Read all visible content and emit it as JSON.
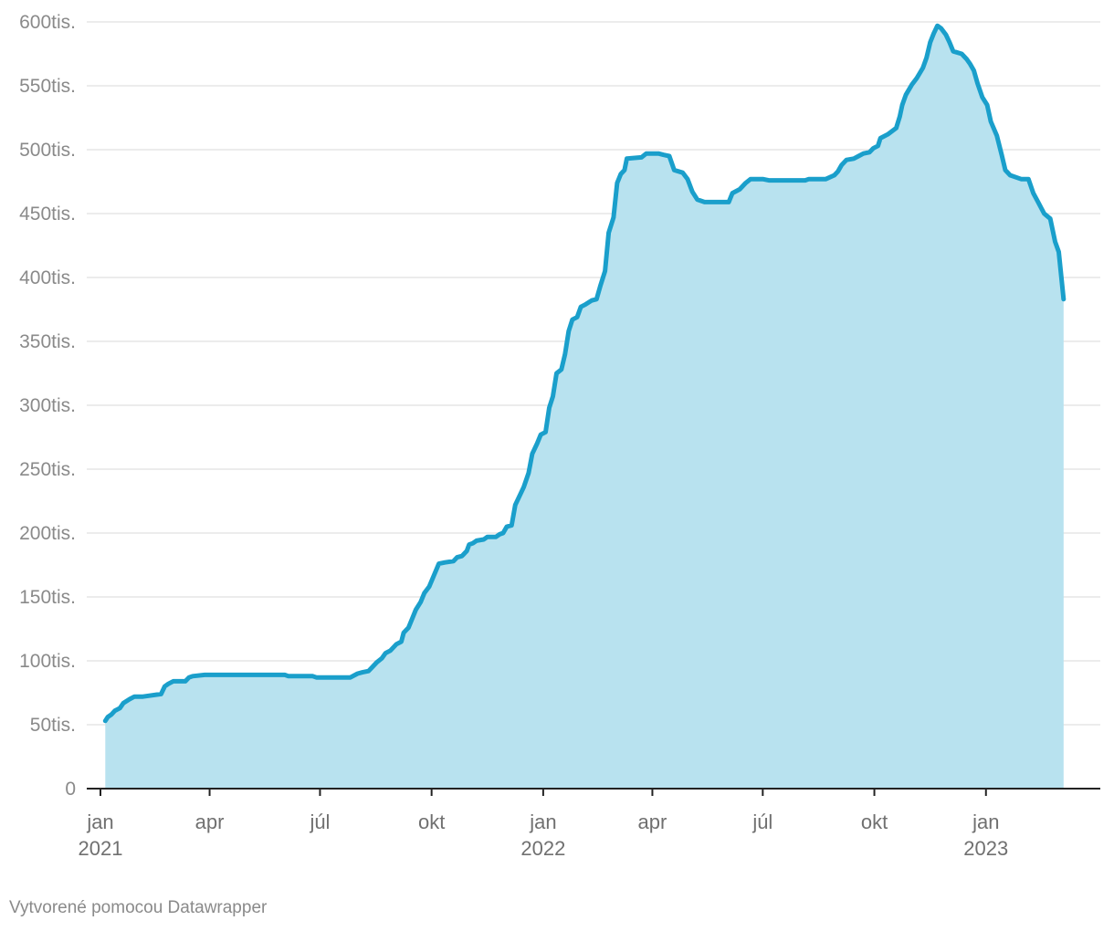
{
  "chart_data": {
    "type": "area",
    "title": "",
    "xlabel": "",
    "ylabel": "",
    "x_range": [
      "2021-01-01",
      "2023-03-31"
    ],
    "ylim": [
      0,
      600000
    ],
    "y_ticks": [
      {
        "value": 0,
        "label": "0"
      },
      {
        "value": 50000,
        "label": "50tis."
      },
      {
        "value": 100000,
        "label": "100tis."
      },
      {
        "value": 150000,
        "label": "150tis."
      },
      {
        "value": 200000,
        "label": "200tis."
      },
      {
        "value": 250000,
        "label": "250tis."
      },
      {
        "value": 300000,
        "label": "300tis."
      },
      {
        "value": 350000,
        "label": "350tis."
      },
      {
        "value": 400000,
        "label": "400tis."
      },
      {
        "value": 450000,
        "label": "450tis."
      },
      {
        "value": 500000,
        "label": "500tis."
      },
      {
        "value": 550000,
        "label": "550tis."
      },
      {
        "value": 600000,
        "label": "600tis."
      }
    ],
    "x_ticks": [
      {
        "date": "2021-01-01",
        "label": "jan",
        "year": "2021"
      },
      {
        "date": "2021-04-01",
        "label": "apr",
        "year": ""
      },
      {
        "date": "2021-07-01",
        "label": "júl",
        "year": ""
      },
      {
        "date": "2021-10-01",
        "label": "okt",
        "year": ""
      },
      {
        "date": "2022-01-01",
        "label": "jan",
        "year": "2022"
      },
      {
        "date": "2022-04-01",
        "label": "apr",
        "year": ""
      },
      {
        "date": "2022-07-01",
        "label": "júl",
        "year": ""
      },
      {
        "date": "2022-10-01",
        "label": "okt",
        "year": ""
      },
      {
        "date": "2023-01-01",
        "label": "jan",
        "year": "2023"
      }
    ],
    "grid": true,
    "colors": {
      "line": "#1a9fcb",
      "fill": "#b8e2ef",
      "grid": "#e0e0e0",
      "axis": "#222222"
    },
    "series": [
      {
        "points": [
          [
            "2021-01-05",
            53000
          ],
          [
            "2021-01-07",
            56000
          ],
          [
            "2021-01-10",
            58000
          ],
          [
            "2021-01-13",
            61000
          ],
          [
            "2021-01-17",
            63000
          ],
          [
            "2021-01-20",
            67000
          ],
          [
            "2021-01-25",
            70000
          ],
          [
            "2021-01-29",
            72000
          ],
          [
            "2021-02-05",
            72000
          ],
          [
            "2021-02-20",
            74000
          ],
          [
            "2021-02-23",
            80000
          ],
          [
            "2021-02-26",
            82000
          ],
          [
            "2021-03-02",
            84000
          ],
          [
            "2021-03-12",
            84000
          ],
          [
            "2021-03-15",
            87000
          ],
          [
            "2021-03-18",
            88000
          ],
          [
            "2021-03-28",
            89000
          ],
          [
            "2021-05-10",
            89000
          ],
          [
            "2021-06-02",
            89000
          ],
          [
            "2021-06-05",
            88000
          ],
          [
            "2021-06-25",
            88000
          ],
          [
            "2021-06-28",
            87000
          ],
          [
            "2021-07-26",
            87000
          ],
          [
            "2021-08-01",
            90000
          ],
          [
            "2021-08-05",
            91000
          ],
          [
            "2021-08-10",
            92000
          ],
          [
            "2021-08-13",
            95000
          ],
          [
            "2021-08-17",
            99000
          ],
          [
            "2021-08-21",
            102000
          ],
          [
            "2021-08-24",
            106000
          ],
          [
            "2021-08-28",
            108000
          ],
          [
            "2021-09-02",
            113000
          ],
          [
            "2021-09-06",
            115000
          ],
          [
            "2021-09-08",
            122000
          ],
          [
            "2021-09-12",
            126000
          ],
          [
            "2021-09-15",
            133000
          ],
          [
            "2021-09-18",
            140000
          ],
          [
            "2021-09-22",
            146000
          ],
          [
            "2021-09-25",
            153000
          ],
          [
            "2021-09-29",
            158000
          ],
          [
            "2021-10-03",
            167000
          ],
          [
            "2021-10-07",
            176000
          ],
          [
            "2021-10-12",
            177000
          ],
          [
            "2021-10-19",
            178000
          ],
          [
            "2021-10-22",
            181000
          ],
          [
            "2021-10-26",
            182000
          ],
          [
            "2021-10-30",
            186000
          ],
          [
            "2021-11-01",
            191000
          ],
          [
            "2021-11-04",
            192000
          ],
          [
            "2021-11-07",
            194000
          ],
          [
            "2021-11-13",
            195000
          ],
          [
            "2021-11-16",
            197000
          ],
          [
            "2021-11-23",
            197000
          ],
          [
            "2021-11-26",
            199000
          ],
          [
            "2021-11-29",
            200000
          ],
          [
            "2021-12-02",
            205000
          ],
          [
            "2021-12-06",
            206000
          ],
          [
            "2021-12-09",
            222000
          ],
          [
            "2021-12-12",
            228000
          ],
          [
            "2021-12-16",
            236000
          ],
          [
            "2021-12-20",
            247000
          ],
          [
            "2021-12-23",
            262000
          ],
          [
            "2021-12-27",
            270000
          ],
          [
            "2021-12-30",
            277000
          ],
          [
            "2022-01-03",
            279000
          ],
          [
            "2022-01-06",
            298000
          ],
          [
            "2022-01-09",
            307000
          ],
          [
            "2022-01-12",
            325000
          ],
          [
            "2022-01-16",
            328000
          ],
          [
            "2022-01-19",
            340000
          ],
          [
            "2022-01-22",
            358000
          ],
          [
            "2022-01-25",
            367000
          ],
          [
            "2022-01-29",
            369000
          ],
          [
            "2022-02-01",
            377000
          ],
          [
            "2022-02-05",
            379000
          ],
          [
            "2022-02-10",
            382000
          ],
          [
            "2022-02-14",
            383000
          ],
          [
            "2022-02-17",
            393000
          ],
          [
            "2022-02-21",
            405000
          ],
          [
            "2022-02-24",
            435000
          ],
          [
            "2022-02-28",
            447000
          ],
          [
            "2022-03-03",
            474000
          ],
          [
            "2022-03-06",
            481000
          ],
          [
            "2022-03-09",
            484000
          ],
          [
            "2022-03-11",
            493000
          ],
          [
            "2022-03-23",
            494000
          ],
          [
            "2022-03-27",
            497000
          ],
          [
            "2022-04-06",
            497000
          ],
          [
            "2022-04-10",
            496000
          ],
          [
            "2022-04-15",
            495000
          ],
          [
            "2022-04-19",
            484000
          ],
          [
            "2022-04-26",
            482000
          ],
          [
            "2022-04-30",
            477000
          ],
          [
            "2022-05-04",
            467000
          ],
          [
            "2022-05-08",
            461000
          ],
          [
            "2022-05-14",
            459000
          ],
          [
            "2022-06-03",
            459000
          ],
          [
            "2022-06-06",
            466000
          ],
          [
            "2022-06-12",
            469000
          ],
          [
            "2022-06-17",
            474000
          ],
          [
            "2022-06-21",
            477000
          ],
          [
            "2022-07-01",
            477000
          ],
          [
            "2022-07-06",
            476000
          ],
          [
            "2022-08-05",
            476000
          ],
          [
            "2022-08-08",
            477000
          ],
          [
            "2022-08-22",
            477000
          ],
          [
            "2022-08-29",
            480000
          ],
          [
            "2022-09-01",
            483000
          ],
          [
            "2022-09-04",
            488000
          ],
          [
            "2022-09-08",
            492000
          ],
          [
            "2022-09-14",
            493000
          ],
          [
            "2022-09-18",
            495000
          ],
          [
            "2022-09-22",
            497000
          ],
          [
            "2022-09-27",
            498000
          ],
          [
            "2022-09-30",
            501000
          ],
          [
            "2022-10-04",
            503000
          ],
          [
            "2022-10-06",
            509000
          ],
          [
            "2022-10-12",
            512000
          ],
          [
            "2022-10-19",
            517000
          ],
          [
            "2022-10-22",
            526000
          ],
          [
            "2022-10-24",
            535000
          ],
          [
            "2022-10-27",
            543000
          ],
          [
            "2022-11-01",
            551000
          ],
          [
            "2022-11-05",
            556000
          ],
          [
            "2022-11-10",
            564000
          ],
          [
            "2022-11-13",
            572000
          ],
          [
            "2022-11-16",
            584000
          ],
          [
            "2022-11-19",
            591000
          ],
          [
            "2022-11-22",
            597000
          ],
          [
            "2022-11-25",
            595000
          ],
          [
            "2022-11-29",
            590000
          ],
          [
            "2022-12-02",
            584000
          ],
          [
            "2022-12-05",
            577000
          ],
          [
            "2022-12-12",
            575000
          ],
          [
            "2022-12-16",
            571000
          ],
          [
            "2022-12-19",
            567000
          ],
          [
            "2022-12-22",
            562000
          ],
          [
            "2022-12-25",
            552000
          ],
          [
            "2022-12-29",
            541000
          ],
          [
            "2023-01-02",
            535000
          ],
          [
            "2023-01-05",
            522000
          ],
          [
            "2023-01-10",
            511000
          ],
          [
            "2023-01-14",
            496000
          ],
          [
            "2023-01-17",
            484000
          ],
          [
            "2023-01-21",
            480000
          ],
          [
            "2023-01-30",
            477000
          ],
          [
            "2023-02-05",
            477000
          ],
          [
            "2023-02-09",
            466000
          ],
          [
            "2023-02-13",
            459000
          ],
          [
            "2023-02-18",
            450000
          ],
          [
            "2023-02-23",
            446000
          ],
          [
            "2023-02-27",
            428000
          ],
          [
            "2023-03-02",
            420000
          ],
          [
            "2023-03-06",
            383000
          ]
        ]
      }
    ]
  },
  "footer": {
    "credit": "Vytvorené pomocou Datawrapper"
  }
}
